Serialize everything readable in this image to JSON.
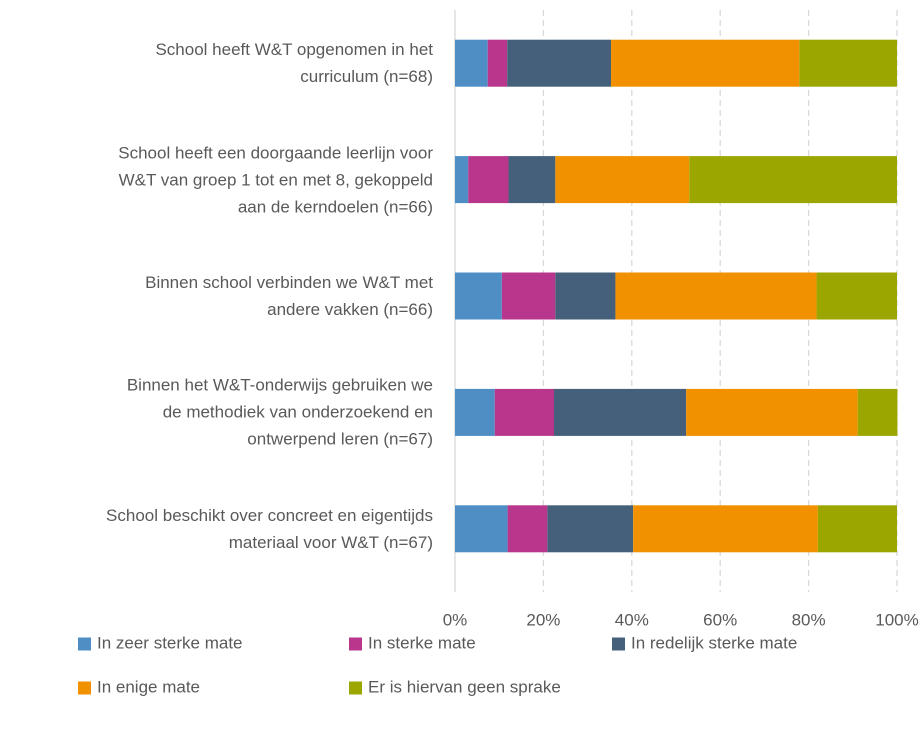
{
  "chart_data": {
    "type": "stacked_barh",
    "categories": [
      "School heeft W&T opgenomen in het\ncurriculum (n=68)",
      "School heeft een doorgaande leerlijn voor\nW&T van groep 1 tot en met 8, gekoppeld\naan de kerndoelen (n=66)",
      "Binnen school verbinden we W&T met\nandere vakken (n=66)",
      "Binnen het W&T-onderwijs gebruiken we\nde methodiek van onderzoekend en\nontwerpend leren (n=67)",
      "School beschikt over concreet en eigentijds\nmateriaal voor W&T (n=67)"
    ],
    "series": [
      {
        "name": "In zeer sterke mate",
        "color": "#4e8ec5",
        "values": [
          7.4,
          3.0,
          10.6,
          9.0,
          11.9
        ]
      },
      {
        "name": "In sterke mate",
        "color": "#b8378c",
        "values": [
          4.4,
          9.1,
          12.1,
          13.4,
          9.0
        ]
      },
      {
        "name": "In redelijk sterke mate",
        "color": "#44607a",
        "values": [
          23.5,
          10.6,
          13.6,
          29.9,
          19.4
        ]
      },
      {
        "name": "In enige mate",
        "color": "#f29100",
        "values": [
          42.6,
          30.3,
          45.5,
          38.8,
          41.8
        ]
      },
      {
        "name": "Er is hiervan geen sprake",
        "color": "#9ca600",
        "values": [
          22.1,
          47.0,
          18.2,
          9.0,
          17.9
        ]
      }
    ],
    "xlim": [
      0,
      100
    ],
    "xticks": [
      {
        "value": 0,
        "label": "0%"
      },
      {
        "value": 20,
        "label": "20%"
      },
      {
        "value": 40,
        "label": "40%"
      },
      {
        "value": 60,
        "label": "60%"
      },
      {
        "value": 80,
        "label": "80%"
      },
      {
        "value": 100,
        "label": "100%"
      }
    ],
    "grid": true
  }
}
